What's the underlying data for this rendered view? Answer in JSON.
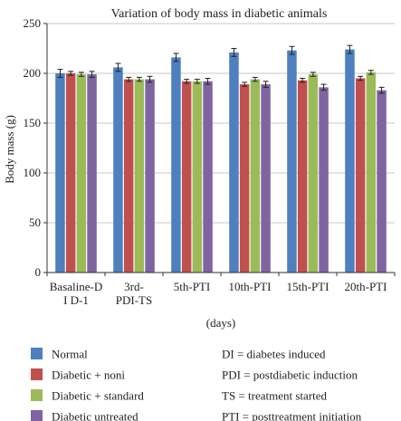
{
  "chart_data": {
    "type": "bar",
    "title": "Variation of body mass in diabetic animals",
    "xlabel": "(days)",
    "ylabel": "Body mass (g)",
    "ylim": [
      0,
      250
    ],
    "yticks": [
      "0",
      "50",
      "100",
      "150",
      "200",
      "250"
    ],
    "categories": [
      [
        "Basaline-D",
        "I D-1"
      ],
      [
        "3rd-",
        "PDI-TS"
      ],
      [
        "5th-PTI"
      ],
      [
        "10th-PTI"
      ],
      [
        "15th-PTI"
      ],
      [
        "20th-PTI"
      ]
    ],
    "series": [
      {
        "name": "Normal",
        "color": "#4e7fbf",
        "values": [
          200,
          206,
          216,
          221,
          223,
          224
        ],
        "errors": [
          4,
          4,
          4,
          4,
          4,
          4
        ]
      },
      {
        "name": "Diabetic + noni",
        "color": "#c0504d",
        "values": [
          200,
          194,
          192,
          189,
          193,
          195
        ],
        "errors": [
          2,
          2,
          2,
          2,
          2,
          2
        ]
      },
      {
        "name": "Diabetic + standard",
        "color": "#9bbb59",
        "values": [
          199,
          194,
          192,
          194,
          199,
          201
        ],
        "errors": [
          2,
          2,
          2,
          2,
          2,
          2
        ]
      },
      {
        "name": "Diabetic untreated",
        "color": "#8064a2",
        "values": [
          199,
          194,
          192,
          189,
          186,
          183
        ],
        "errors": [
          3,
          3,
          3,
          3,
          3,
          3
        ]
      }
    ],
    "grid": true,
    "legend_position": "bottom"
  },
  "abbreviations": [
    "DI = diabetes induced",
    "PDI = postdiabetic induction",
    "TS = treatment started",
    "PTI = posttreatment initiation"
  ]
}
